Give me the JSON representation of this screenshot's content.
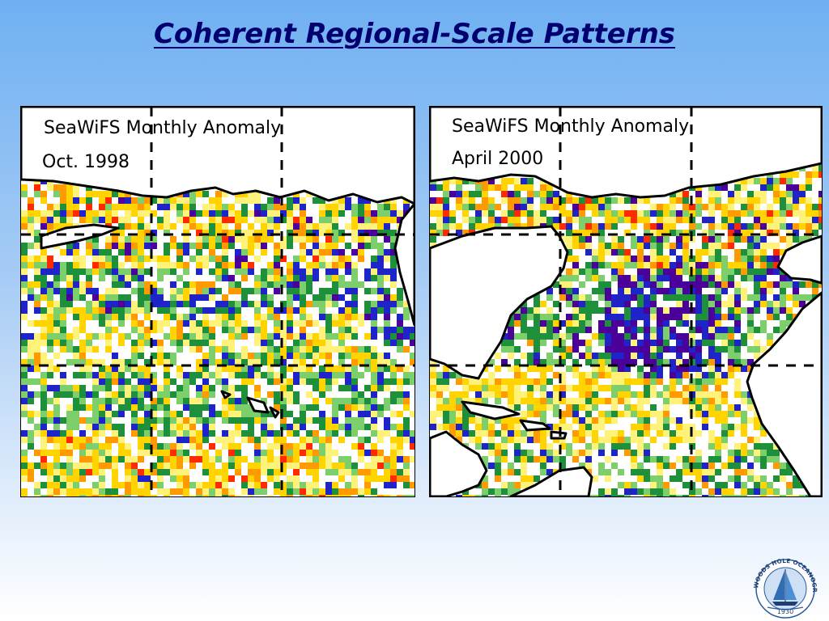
{
  "slide": {
    "title": "Coherent Regional-Scale Patterns"
  },
  "panels": [
    {
      "label_line1": "SeaWiFS Monthly Anomaly",
      "label_line2": "Oct. 1998"
    },
    {
      "label_line1": "SeaWiFS Monthly Anomaly",
      "label_line2": "April 2000"
    }
  ],
  "logo": {
    "ring_text": "WOODS HOLE OCEANOGRAPHIC INSTITUTION",
    "year": "1930"
  },
  "colors": {
    "title": "#000070",
    "anomaly_scale": [
      "#4b0099",
      "#1f24c8",
      "#1e8f3a",
      "#7ccf6a",
      "#ffffff",
      "#fff27a",
      "#ffd400",
      "#ff9a00",
      "#ff2a00"
    ],
    "land": "#ffffff",
    "coastline": "#000000"
  }
}
